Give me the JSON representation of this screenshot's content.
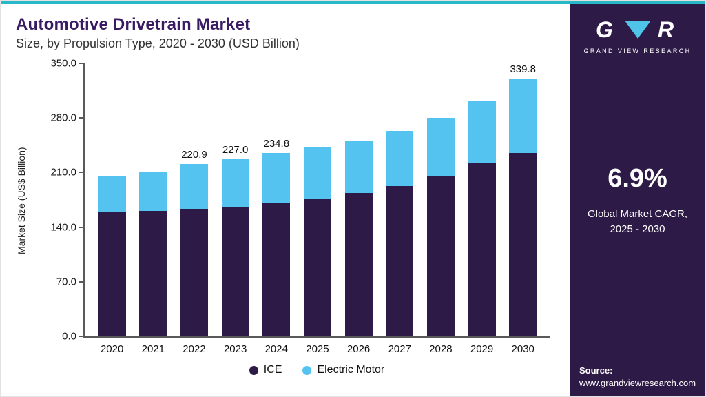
{
  "header": {
    "title": "Automotive Drivetrain Market",
    "subtitle": "Size, by Propulsion Type, 2020 - 2030 (USD Billion)"
  },
  "chart_data": {
    "type": "bar",
    "stacked": true,
    "title": "Automotive Drivetrain Market Size, by Propulsion Type, 2020 - 2030 (USD Billion)",
    "categories": [
      "2020",
      "2021",
      "2022",
      "2023",
      "2024",
      "2025",
      "2026",
      "2027",
      "2028",
      "2029",
      "2030"
    ],
    "series": [
      {
        "name": "ICE",
        "color": "#2e1a47",
        "values": [
          159.0,
          161.0,
          163.9,
          166.5,
          171.8,
          177.0,
          184.0,
          193.0,
          206.0,
          222.0,
          241.8
        ]
      },
      {
        "name": "Electric Motor",
        "color": "#55c3f0",
        "values": [
          46.0,
          49.0,
          57.0,
          60.5,
          63.0,
          65.0,
          66.0,
          70.0,
          74.0,
          80.0,
          98.0
        ]
      }
    ],
    "total_labels": [
      "",
      "",
      "220.9",
      "227.0",
      "234.8",
      "",
      "",
      "",
      "",
      "",
      "339.8"
    ],
    "xlabel": "",
    "ylabel": "Market Size (US$ Billion)",
    "ylim": [
      0,
      350
    ],
    "yticks": [
      "0.0",
      "70.0",
      "140.0",
      "210.0",
      "280.0",
      "350.0"
    ],
    "grid": false,
    "legend_position": "bottom"
  },
  "sidebar": {
    "logo_g": "G",
    "logo_r": "R",
    "logo_text": "GRAND VIEW RESEARCH",
    "cagr_value": "6.9%",
    "cagr_label_line1": "Global Market CAGR,",
    "cagr_label_line2": "2025 - 2030",
    "source_label": "Source:",
    "source_url": "www.grandviewresearch.com"
  },
  "colors": {
    "accent_teal": "#29b8c5",
    "sidebar_bg": "#2e1a47",
    "title_purple": "#391b63",
    "ice": "#2e1a47",
    "electric_motor": "#55c3f0",
    "logo_triangle": "#4fc3e8"
  }
}
